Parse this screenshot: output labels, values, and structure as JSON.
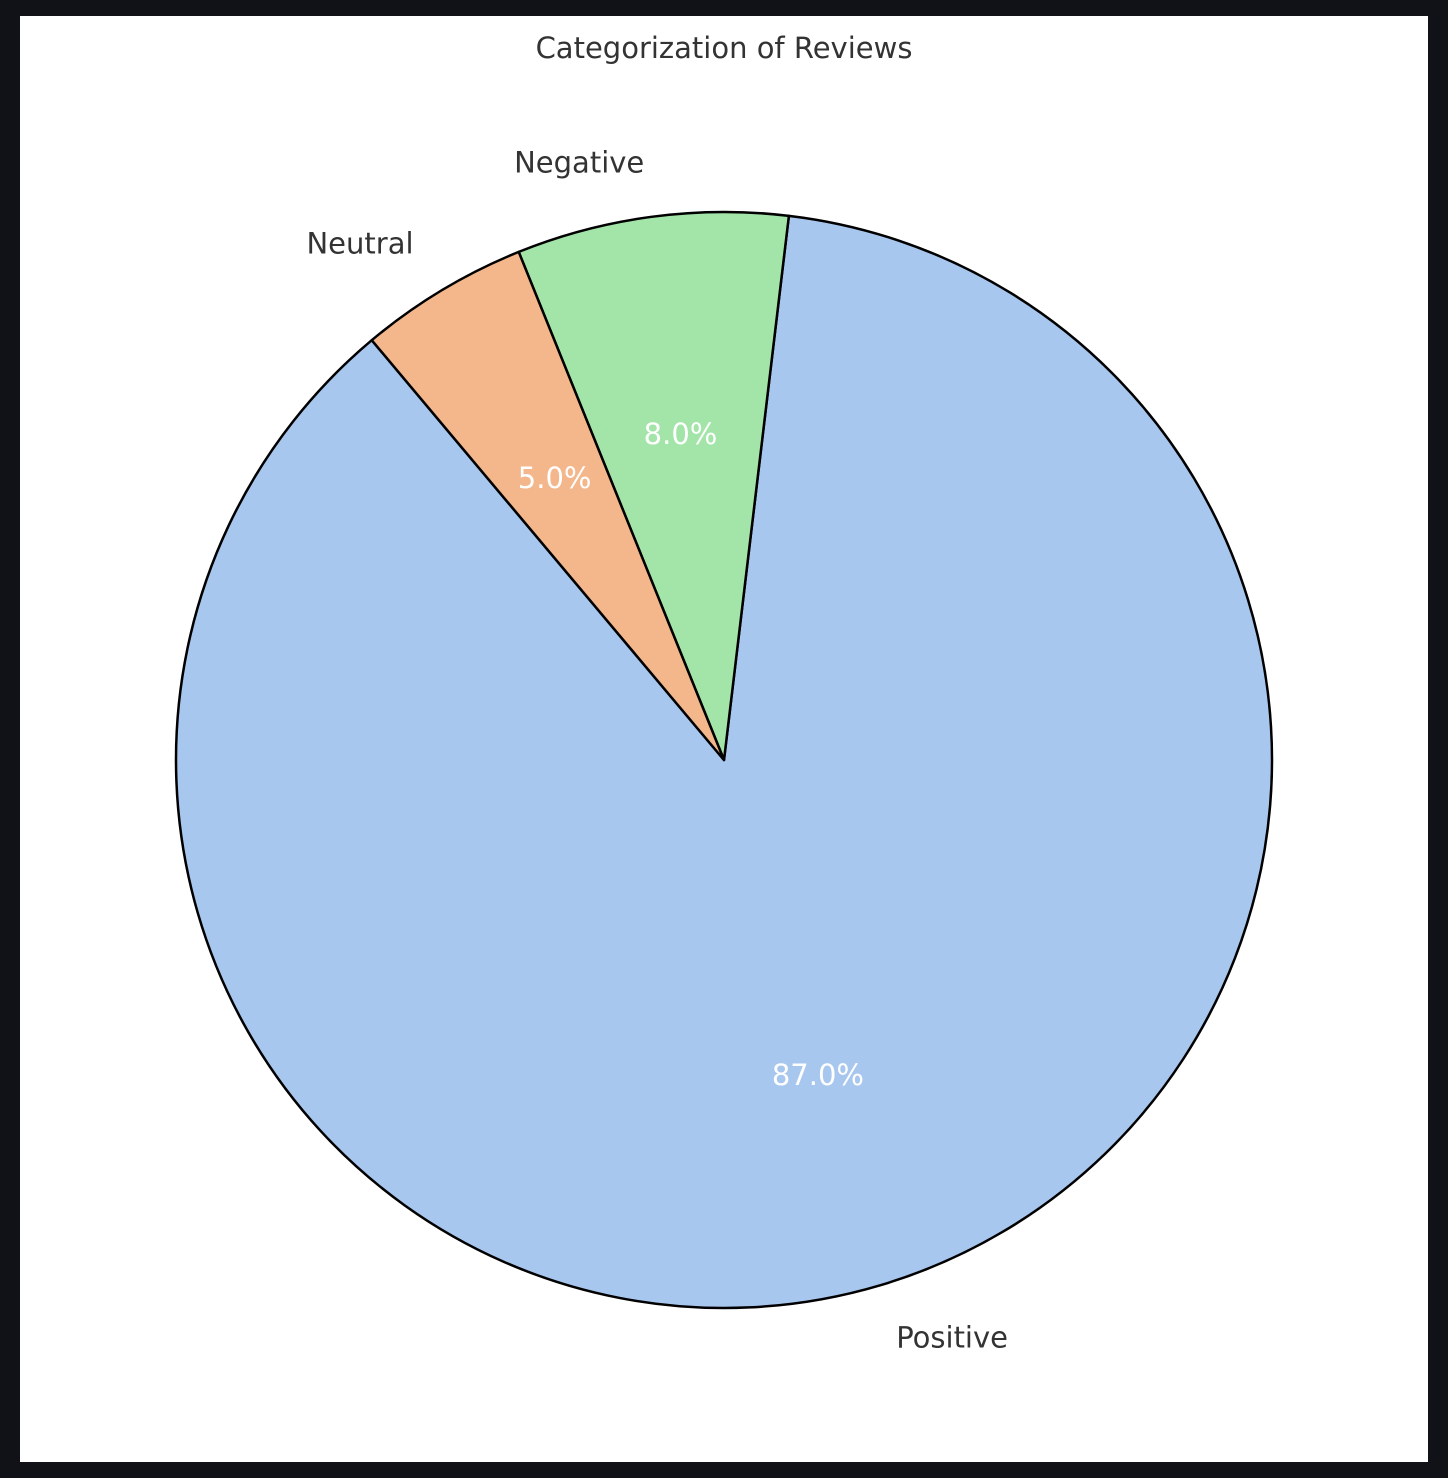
{
  "chart_data": {
    "type": "pie",
    "title": "Categorization of Reviews",
    "categories": [
      "Positive",
      "Negative",
      "Neutral"
    ],
    "values": [
      87.0,
      8.0,
      5.0
    ],
    "value_labels": [
      "87.0%",
      "8.0%",
      "5.0%"
    ],
    "colors": [
      "#a8c7ef",
      "#a3e4a8",
      "#f4b78c"
    ],
    "edge_color": "#000000",
    "legend": "none"
  }
}
